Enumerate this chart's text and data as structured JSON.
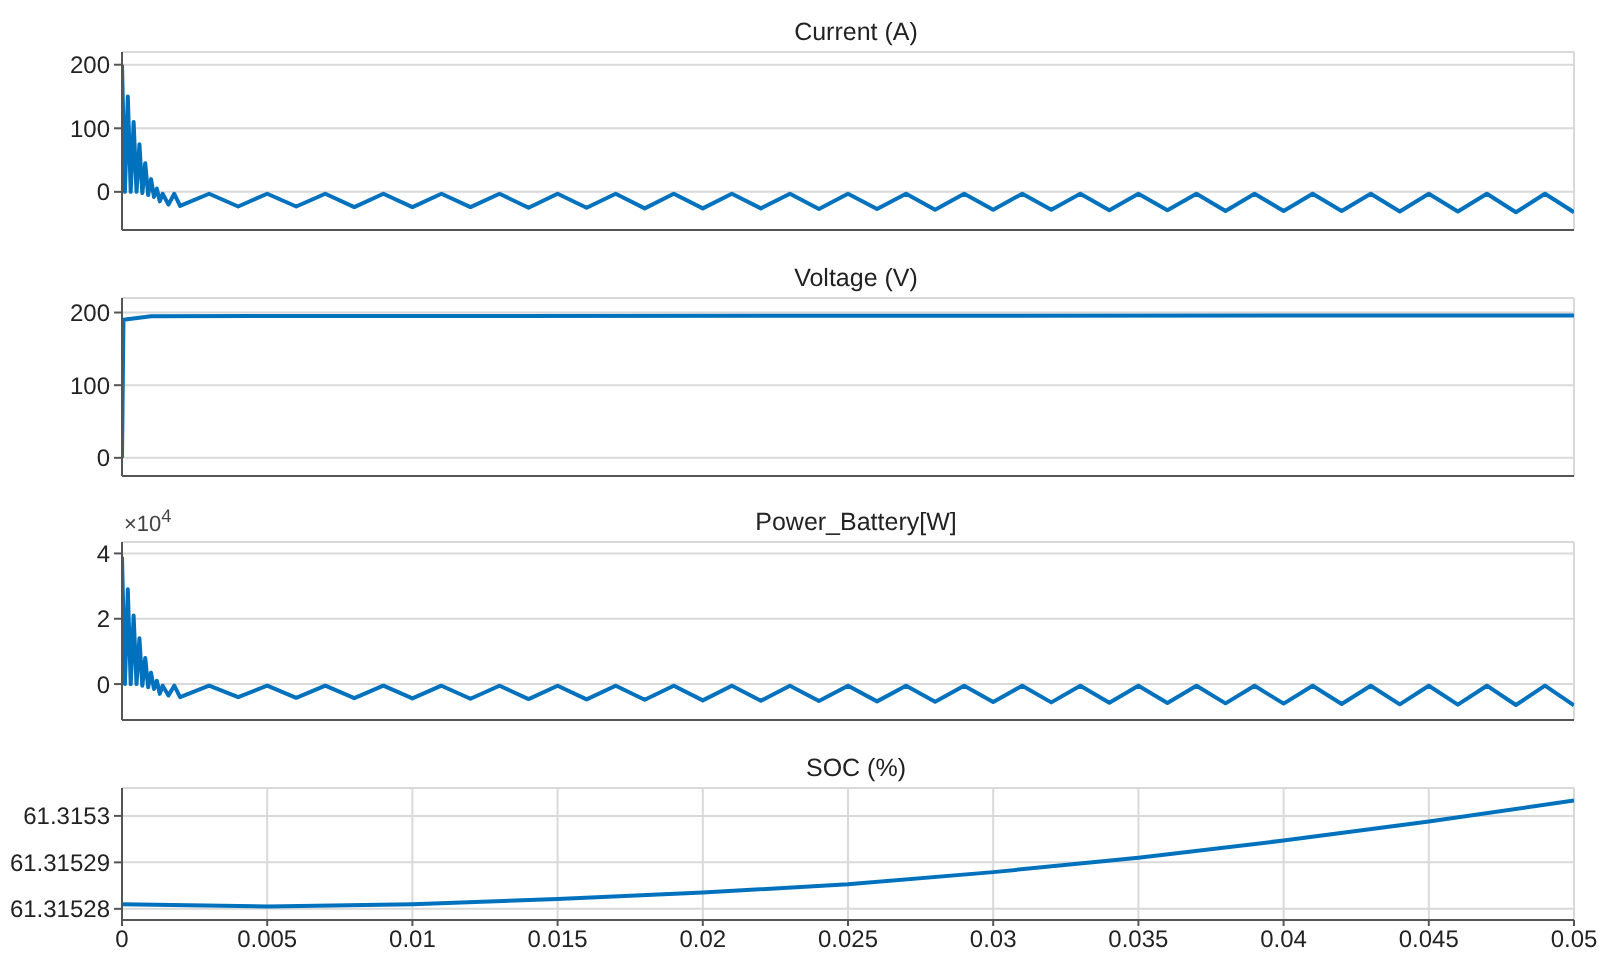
{
  "chart_data": [
    {
      "type": "line",
      "title": "Current (A)",
      "xlim": [
        0,
        0.05
      ],
      "xticks": [
        0,
        0.005,
        0.01,
        0.015,
        0.02,
        0.025,
        0.03,
        0.035,
        0.04,
        0.045,
        0.05
      ],
      "ylim": [
        -60,
        220
      ],
      "yticks": [
        0,
        100,
        200
      ],
      "grid": true,
      "tick_labels": "y",
      "series": [
        {
          "color": "#0072bd",
          "x": [
            0,
            0.0001,
            0.0002,
            0.0003,
            0.0004,
            0.0005,
            0.0006,
            0.0007,
            0.0008,
            0.0009,
            0.001,
            0.0011,
            0.0012,
            0.0013,
            0.0014,
            0.0016,
            0.0018,
            0.002,
            0.003,
            0.004,
            0.005,
            0.006,
            0.007,
            0.008,
            0.009,
            0.01,
            0.011,
            0.012,
            0.013,
            0.014,
            0.015,
            0.016,
            0.017,
            0.018,
            0.019,
            0.02,
            0.021,
            0.022,
            0.023,
            0.024,
            0.025,
            0.026,
            0.027,
            0.028,
            0.029,
            0.03,
            0.031,
            0.032,
            0.033,
            0.034,
            0.035,
            0.036,
            0.037,
            0.038,
            0.039,
            0.04,
            0.041,
            0.042,
            0.043,
            0.044,
            0.045,
            0.046,
            0.047,
            0.048,
            0.049,
            0.05
          ],
          "values": [
            200,
            0,
            150,
            0,
            110,
            0,
            75,
            -2,
            45,
            -5,
            20,
            -8,
            5,
            -15,
            -3,
            -20,
            -3,
            -22,
            -3,
            -23,
            -3,
            -23,
            -3,
            -24,
            -3,
            -24,
            -3,
            -24,
            -3,
            -25,
            -3,
            -25,
            -3,
            -26,
            -3,
            -26,
            -3,
            -26,
            -3,
            -27,
            -3,
            -27,
            -3,
            -28,
            -3,
            -28,
            -3,
            -28,
            -3,
            -29,
            -3,
            -29,
            -3,
            -30,
            -3,
            -30,
            -3,
            -30,
            -3,
            -31,
            -3,
            -31,
            -3,
            -32,
            -3,
            -32
          ]
        }
      ]
    },
    {
      "type": "line",
      "title": "Voltage (V)",
      "xlim": [
        0,
        0.05
      ],
      "xticks": [
        0,
        0.005,
        0.01,
        0.015,
        0.02,
        0.025,
        0.03,
        0.035,
        0.04,
        0.045,
        0.05
      ],
      "ylim": [
        -25,
        220
      ],
      "yticks": [
        0,
        100,
        200
      ],
      "grid": true,
      "tick_labels": "y",
      "series": [
        {
          "color": "#0072bd",
          "x": [
            0,
            5e-05,
            0.001,
            0.05
          ],
          "values": [
            0,
            190,
            195,
            196
          ]
        }
      ]
    },
    {
      "type": "line",
      "title": "Power_Battery[W]",
      "annotations": [
        "×10$^{4}$"
      ],
      "xlim": [
        0,
        0.05
      ],
      "xticks": [
        0,
        0.005,
        0.01,
        0.015,
        0.02,
        0.025,
        0.03,
        0.035,
        0.04,
        0.045,
        0.05
      ],
      "ylim": [
        -1.1,
        4.35
      ],
      "yticks": [
        0,
        2,
        4
      ],
      "grid": true,
      "tick_labels": "y",
      "series": [
        {
          "color": "#0072bd",
          "x": [
            0,
            0.0001,
            0.0002,
            0.0003,
            0.0004,
            0.0005,
            0.0006,
            0.0007,
            0.0008,
            0.0009,
            0.001,
            0.0011,
            0.0012,
            0.0013,
            0.0014,
            0.0016,
            0.0018,
            0.002,
            0.003,
            0.004,
            0.005,
            0.006,
            0.007,
            0.008,
            0.009,
            0.01,
            0.011,
            0.012,
            0.013,
            0.014,
            0.015,
            0.016,
            0.017,
            0.018,
            0.019,
            0.02,
            0.021,
            0.022,
            0.023,
            0.024,
            0.025,
            0.026,
            0.027,
            0.028,
            0.029,
            0.03,
            0.031,
            0.032,
            0.033,
            0.034,
            0.035,
            0.036,
            0.037,
            0.038,
            0.039,
            0.04,
            0.041,
            0.042,
            0.043,
            0.044,
            0.045,
            0.046,
            0.047,
            0.048,
            0.049,
            0.05
          ],
          "values": [
            3.9,
            0,
            2.9,
            0,
            2.1,
            0,
            1.4,
            -0.05,
            0.8,
            -0.1,
            0.35,
            -0.15,
            0.1,
            -0.3,
            -0.05,
            -0.35,
            -0.05,
            -0.4,
            -0.05,
            -0.4,
            -0.05,
            -0.42,
            -0.05,
            -0.43,
            -0.05,
            -0.44,
            -0.05,
            -0.45,
            -0.05,
            -0.46,
            -0.05,
            -0.47,
            -0.05,
            -0.48,
            -0.05,
            -0.5,
            -0.05,
            -0.51,
            -0.05,
            -0.52,
            -0.05,
            -0.53,
            -0.05,
            -0.54,
            -0.05,
            -0.55,
            -0.05,
            -0.56,
            -0.05,
            -0.57,
            -0.05,
            -0.58,
            -0.05,
            -0.59,
            -0.05,
            -0.6,
            -0.05,
            -0.61,
            -0.05,
            -0.62,
            -0.05,
            -0.63,
            -0.05,
            -0.64,
            -0.05,
            -0.65
          ]
        }
      ]
    },
    {
      "type": "line",
      "title": "SOC (%)",
      "xlim": [
        0,
        0.05
      ],
      "xticks": [
        0,
        0.005,
        0.01,
        0.015,
        0.02,
        0.025,
        0.03,
        0.035,
        0.04,
        0.045,
        0.05
      ],
      "ylim": [
        61.3152776,
        61.315306
      ],
      "yticks": [
        61.31528,
        61.31529,
        61.3153
      ],
      "grid": true,
      "series": [
        {
          "color": "#0072bd",
          "x": [
            0,
            0.005,
            0.01,
            0.015,
            0.02,
            0.025,
            0.03,
            0.035,
            0.04,
            0.045,
            0.05
          ],
          "values": [
            61.315281,
            61.3152805,
            61.315281,
            61.3152821,
            61.3152835,
            61.3152853,
            61.3152879,
            61.315291,
            61.3152947,
            61.3152988,
            61.3153033
          ]
        }
      ]
    }
  ]
}
